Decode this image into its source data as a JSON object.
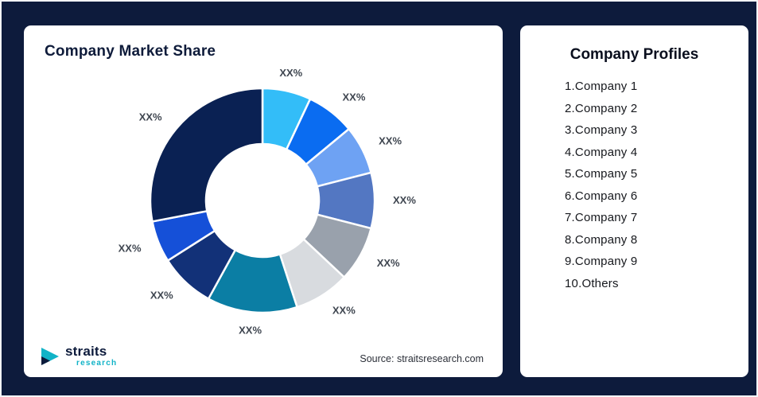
{
  "page": {
    "background_color": "#0d1b3c"
  },
  "left_card": {
    "title": "Company Market Share",
    "source": "Source: straitsresearch.com",
    "logo": {
      "name": "straits",
      "sub": "research"
    }
  },
  "right_card": {
    "title": "Company Profiles",
    "items": [
      "1.Company 1",
      "2.Company 2",
      "3.Company 3",
      "4.Company 4",
      "5.Company 5",
      "6.Company 6",
      "7.Company 7",
      "8.Company 8",
      "9.Company 9",
      "10.Others"
    ]
  },
  "chart_data": {
    "type": "pie",
    "subtype": "donut",
    "title": "Company Market Share",
    "start_angle_deg": 0,
    "direction": "clockwise",
    "inner_radius_ratio": 0.5,
    "legend_position": "none",
    "segment_names": [
      "Company 1",
      "Company 2",
      "Company 3",
      "Company 4",
      "Company 5",
      "Company 6",
      "Company 7",
      "Company 8",
      "Company 9",
      "Others"
    ],
    "labels": [
      "XX%",
      "XX%",
      "XX%",
      "XX%",
      "XX%",
      "XX%",
      "XX%",
      "XX%",
      "XX%",
      "XX%"
    ],
    "values": [
      7,
      7,
      7,
      8,
      8,
      8,
      13,
      8,
      6,
      28
    ],
    "values_note_units": "percent (arc sizes estimated from pixels; on-chart labels show placeholder XX%)",
    "colors": [
      "#33bdf8",
      "#0a6cf1",
      "#6ea2f3",
      "#5377c2",
      "#99a1ac",
      "#d8dbdf",
      "#0b7ea4",
      "#123178",
      "#1550d8",
      "#0a2153"
    ]
  }
}
